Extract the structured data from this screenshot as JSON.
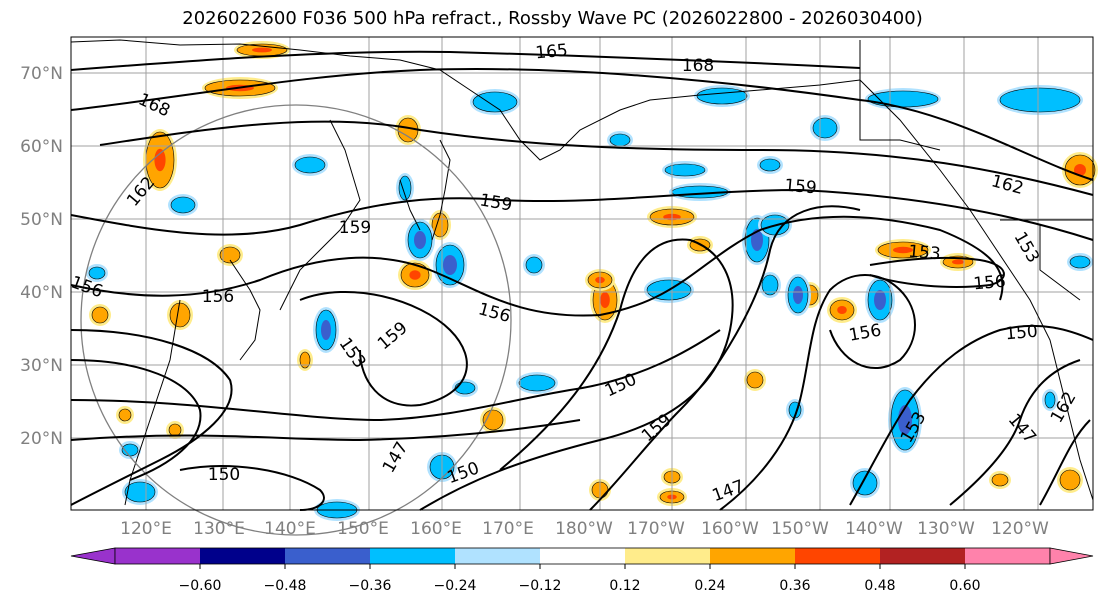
{
  "title": "2026022600 F036 500 hPa refract., Rossby Wave PC (2026022800 - 2026030400)",
  "lat_labels": [
    "70°N",
    "60°N",
    "50°N",
    "40°N",
    "30°N",
    "20°N"
  ],
  "lon_labels": [
    "120°E",
    "130°E",
    "140°E",
    "150°E",
    "160°E",
    "170°E",
    "180°W",
    "170°W",
    "160°W",
    "150°W",
    "140°W",
    "130°W",
    "120°W"
  ],
  "contour_labels": [
    "165",
    "168",
    "168",
    "162",
    "162",
    "159",
    "159",
    "159",
    "159",
    "156",
    "156",
    "156",
    "156",
    "156",
    "153",
    "153",
    "153",
    "153",
    "150",
    "150",
    "150",
    "150",
    "147",
    "147",
    "147",
    "162",
    "159"
  ],
  "colorbar": {
    "ticks": [
      "−0.60",
      "−0.48",
      "−0.36",
      "−0.24",
      "−0.12",
      "0.12",
      "0.24",
      "0.36",
      "0.48",
      "0.60"
    ],
    "colors": [
      "#9932cc",
      "#00008b",
      "#3a5fcd",
      "#00bfff",
      "#b0e2ff",
      "#ffffff",
      "#ffec8b",
      "#ffa500",
      "#ff4500",
      "#b22222",
      "#ff82ab"
    ]
  },
  "colors": {
    "fill_orange": "#ffa500",
    "fill_yellow": "#ffec8b",
    "fill_red": "#ff4500",
    "fill_cyan": "#00bfff",
    "fill_lightblue": "#b0e2ff",
    "fill_blue": "#3a5fcd",
    "grid": "#a0a0a0",
    "contour": "#000000",
    "circle": "#808080"
  }
}
